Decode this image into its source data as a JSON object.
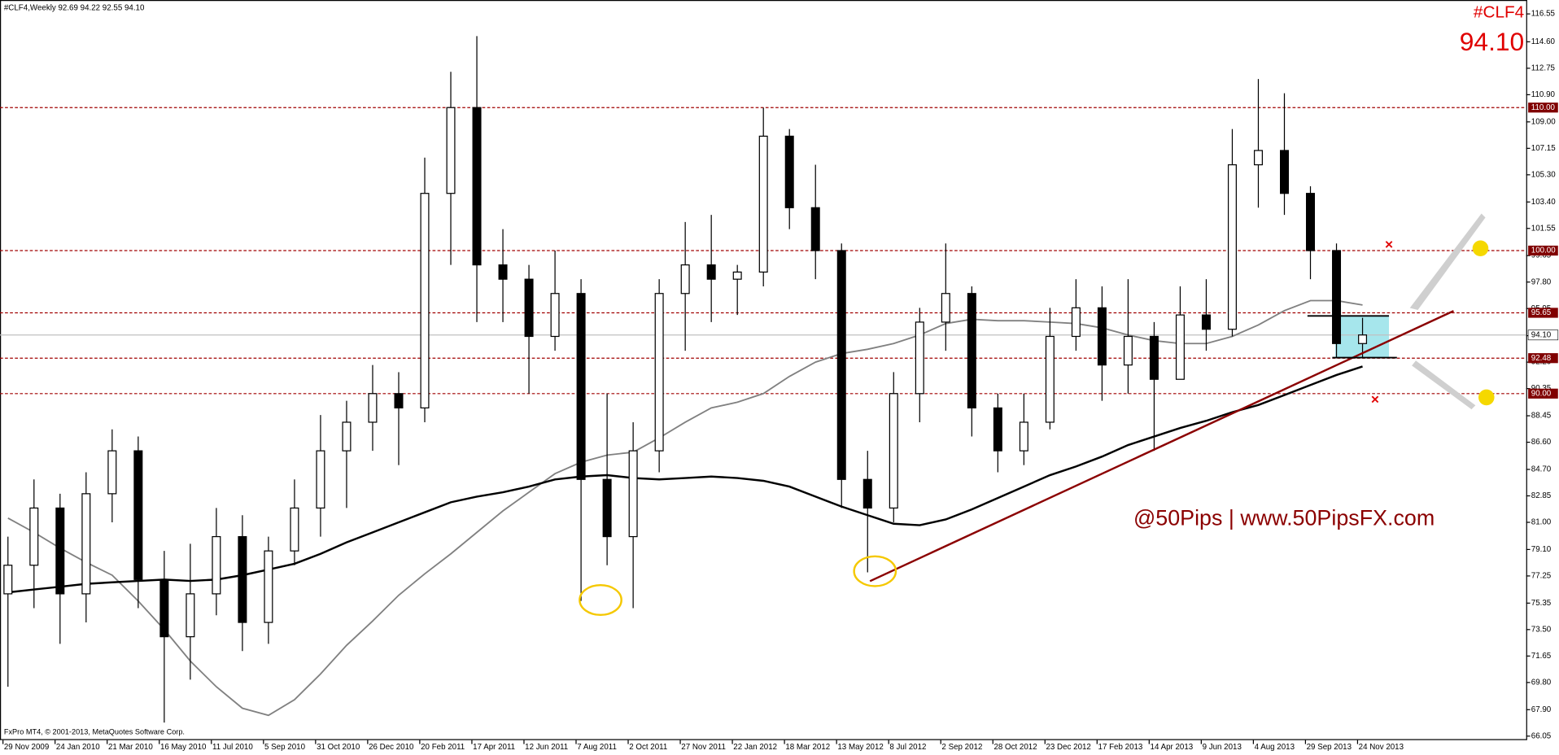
{
  "chart_data": {
    "type": "candlestick",
    "header": "#CLF4,Weekly  92.69 94.22 92.55 94.10",
    "symbol": "#CLF4",
    "watermark": "@50Pips | www.50PipsFX.com",
    "footer": "FxPro MT4, © 2001-2013, MetaQuotes Software Corp.",
    "categories": [
      "29 Nov 2009",
      null,
      "24 Jan 2010",
      null,
      "21 Mar 2010",
      null,
      "16 May 2010",
      null,
      "11 Jul 2010",
      null,
      "5 Sep 2010",
      null,
      "31 Oct 2010",
      null,
      "26 Dec 2010",
      null,
      "20 Feb 2011",
      null,
      "17 Apr 2011",
      null,
      "12 Jun 2011",
      null,
      "7 Aug 2011",
      null,
      "2 Oct 2011",
      null,
      "27 Nov 2011",
      null,
      "22 Jan 2012",
      null,
      "18 Mar 2012",
      null,
      "13 May 2012",
      null,
      "8 Jul 2012",
      null,
      "2 Sep 2012",
      null,
      "28 Oct 2012",
      null,
      "23 Dec 2012",
      null,
      "17 Feb 2013",
      null,
      "14 Apr 2013",
      null,
      "9 Jun 2013",
      null,
      "4 Aug 2013",
      null,
      "29 Sep 2013",
      null,
      "24 Nov 2013"
    ],
    "open": [
      76,
      78,
      82,
      76,
      83,
      86,
      77,
      73,
      76,
      80,
      74,
      79,
      82,
      86,
      88,
      90,
      89,
      104,
      110,
      99,
      98,
      94,
      97,
      84,
      80,
      86,
      97,
      99,
      98,
      98.5,
      108,
      103,
      100,
      84,
      82,
      90,
      95,
      97,
      89,
      86,
      88,
      94,
      96,
      92,
      94,
      91,
      95.5,
      94.5,
      106,
      107,
      104,
      100,
      93.5
    ],
    "high": [
      80,
      84,
      83,
      84.5,
      87.5,
      87,
      79,
      79.5,
      82,
      81.5,
      80,
      84,
      88.5,
      89.5,
      92,
      91.5,
      106.5,
      112.5,
      115,
      101.5,
      99,
      100,
      98,
      90,
      88,
      98,
      102,
      102.5,
      99,
      110,
      108.5,
      106,
      100.5,
      86,
      91.5,
      96,
      100.5,
      97.5,
      90,
      90,
      96,
      98,
      97.5,
      98,
      95,
      97.5,
      98,
      108.5,
      112,
      111,
      104.5,
      100.5,
      95.3
    ],
    "low": [
      69.5,
      75,
      72.5,
      74,
      81,
      75,
      67,
      70,
      74.5,
      72,
      72.5,
      78,
      80,
      82,
      86,
      85,
      88,
      99,
      95,
      95,
      90,
      93,
      75.5,
      78,
      75,
      84.5,
      93,
      95,
      95.5,
      97.5,
      101.5,
      98,
      82,
      77.5,
      81,
      88,
      93,
      87,
      84.5,
      85,
      87.5,
      93,
      89.5,
      90,
      86,
      91,
      93,
      94,
      103,
      102.5,
      98,
      92.5,
      92.5
    ],
    "close": [
      78,
      82,
      76,
      83,
      86,
      77,
      73,
      76,
      80,
      74,
      79,
      82,
      86,
      88,
      90,
      89,
      104,
      110,
      99,
      98,
      94,
      97,
      84,
      80,
      86,
      97,
      99,
      98,
      98.5,
      108,
      103,
      100,
      84,
      82,
      90,
      95,
      97,
      89,
      86,
      88,
      94,
      96,
      92,
      94,
      91,
      95.5,
      94.5,
      106,
      107,
      104,
      100,
      93.5,
      94.1
    ],
    "up_color": "#ffffff",
    "down_color": "#000000",
    "moving_averages": [
      {
        "color": "#808080",
        "values": [
          81.3,
          80.3,
          79.2,
          78.2,
          77.3,
          75.5,
          73.5,
          71.3,
          69.5,
          68.0,
          67.5,
          68.6,
          70.4,
          72.4,
          74.1,
          75.9,
          77.4,
          78.8,
          80.3,
          81.8,
          83.1,
          84.4,
          85.2,
          85.7,
          85.9,
          86.9,
          88.0,
          89.0,
          89.4,
          90.0,
          91.2,
          92.2,
          92.8,
          93.1,
          93.5,
          94.1,
          94.9,
          95.2,
          95.1,
          95.1,
          95.0,
          94.9,
          94.6,
          94.1,
          93.7,
          93.5,
          93.5,
          94.0,
          94.8,
          95.8,
          96.5,
          96.5,
          96.2
        ]
      },
      {
        "color": "#000000",
        "values": [
          76.1,
          76.3,
          76.5,
          76.7,
          76.8,
          76.9,
          77.0,
          76.9,
          77.0,
          77.3,
          77.7,
          78.1,
          78.8,
          79.6,
          80.3,
          81.0,
          81.7,
          82.4,
          82.8,
          83.1,
          83.5,
          84.0,
          84.2,
          84.3,
          84.1,
          84.0,
          84.1,
          84.2,
          84.1,
          83.9,
          83.5,
          82.8,
          82.1,
          81.5,
          80.9,
          80.8,
          81.2,
          81.9,
          82.7,
          83.5,
          84.3,
          84.9,
          85.6,
          86.4,
          87.0,
          87.6,
          88.1,
          88.7,
          89.2,
          89.9,
          90.6,
          91.3,
          91.9
        ]
      }
    ],
    "levels": [
      {
        "value": 110,
        "label": "110.00"
      },
      {
        "value": 100,
        "label": "100.00"
      },
      {
        "value": 95.65,
        "label": "95.65"
      },
      {
        "value": 92.48,
        "label": "92.48"
      },
      {
        "value": 90,
        "label": "90.00"
      }
    ],
    "level_color": "#a00000",
    "current": {
      "value": 94.1,
      "label": "94.10"
    },
    "ylim": [
      66.05,
      116.55
    ],
    "yticks": [
      {
        "value": 116.55,
        "label": "116.55"
      },
      {
        "value": 114.6,
        "label": "114.60"
      },
      {
        "value": 112.75,
        "label": "112.75"
      },
      {
        "value": 110.9,
        "label": "110.90"
      },
      {
        "value": 109,
        "label": "109.00"
      },
      {
        "value": 107.15,
        "label": "107.15"
      },
      {
        "value": 105.3,
        "label": "105.30"
      },
      {
        "value": 103.4,
        "label": "103.40"
      },
      {
        "value": 101.55,
        "label": "101.55"
      },
      {
        "value": 99.65,
        "label": "99.65"
      },
      {
        "value": 97.8,
        "label": "97.80"
      },
      {
        "value": 95.95,
        "label": "95.95"
      },
      {
        "value": 94.05,
        "label": "94.05"
      },
      {
        "value": 92.2,
        "label": "92.20"
      },
      {
        "value": 90.35,
        "label": "90.35"
      },
      {
        "value": 88.45,
        "label": "88.45"
      },
      {
        "value": 86.6,
        "label": "86.60"
      },
      {
        "value": 84.7,
        "label": "84.70"
      },
      {
        "value": 82.85,
        "label": "82.85"
      },
      {
        "value": 81,
        "label": "81.00"
      },
      {
        "value": 79.1,
        "label": "79.10"
      },
      {
        "value": 77.25,
        "label": "77.25"
      },
      {
        "value": 75.35,
        "label": "75.35"
      },
      {
        "value": 73.5,
        "label": "73.50"
      },
      {
        "value": 71.65,
        "label": "71.65"
      },
      {
        "value": 69.8,
        "label": "69.80"
      },
      {
        "value": 67.9,
        "label": "67.90"
      },
      {
        "value": 66.05,
        "label": "66.05"
      }
    ],
    "grid": false
  }
}
